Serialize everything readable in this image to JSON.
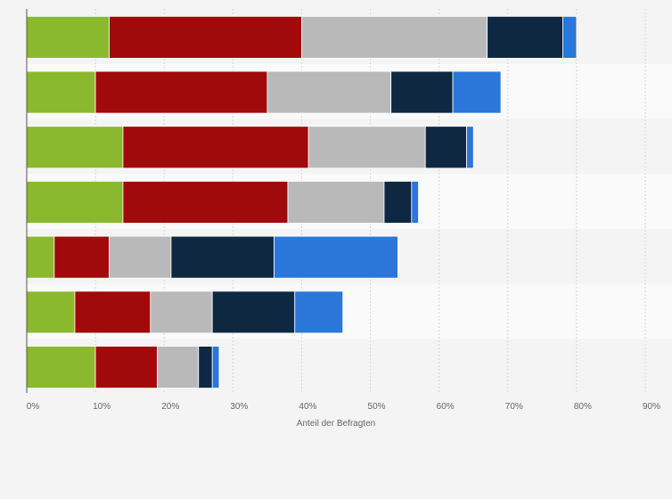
{
  "chart_data": {
    "type": "bar",
    "orientation": "horizontal",
    "stacked": true,
    "xlabel": "Anteil der Befragten",
    "xlim": [
      0,
      90
    ],
    "x_tick_labels": [
      "0%",
      "10%",
      "20%",
      "30%",
      "40%",
      "50%",
      "60%",
      "70%",
      "80%",
      "90%"
    ],
    "x_ticks": [
      0,
      10,
      20,
      30,
      40,
      50,
      60,
      70,
      80,
      90
    ],
    "grid": true,
    "legend": "none",
    "series_colors": [
      "#8ab92d",
      "#a10a0a",
      "#b9b9b9",
      "#0e2841",
      "#2a77d9"
    ],
    "rows": [
      [
        12,
        28,
        27,
        11,
        2
      ],
      [
        10,
        25,
        18,
        9,
        7
      ],
      [
        14,
        27,
        17,
        6,
        1
      ],
      [
        14,
        24,
        14,
        4,
        1
      ],
      [
        4,
        8,
        9,
        15,
        18
      ],
      [
        7,
        11,
        9,
        12,
        7
      ],
      [
        10,
        9,
        6,
        2,
        1
      ]
    ]
  }
}
